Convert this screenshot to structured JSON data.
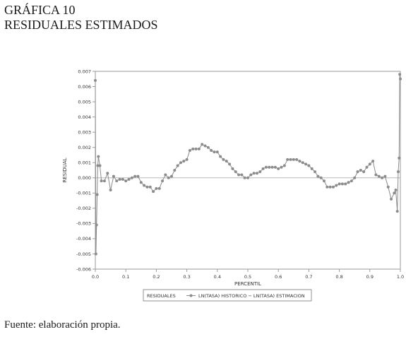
{
  "header": {
    "figure_number": "GRÁFICA 10",
    "figure_title": "RESIDUALES ESTIMADOS"
  },
  "footer": {
    "source": "Fuente: elaboración propia."
  },
  "chart_data": {
    "type": "line",
    "xlabel": "PERCENTIL",
    "ylabel": "RESIDUAL",
    "xlim": [
      0.0,
      1.0
    ],
    "ylim": [
      -0.006,
      0.007
    ],
    "xticks": [
      "0.0",
      "0.1",
      "0.2",
      "0.3",
      "0.4",
      "0.5",
      "0.6",
      "0.7",
      "0.8",
      "0.9",
      "1.0"
    ],
    "yticks": [
      "0.007",
      "0.006",
      "0.005",
      "0.004",
      "0.003",
      "0.002",
      "0.001",
      "0.000",
      "-0.001",
      "-0.002",
      "-0.003",
      "-0.004",
      "-0.005",
      "-0.006"
    ],
    "reference_line_y": 0.0,
    "grid": false,
    "legend": {
      "placement": "bottom",
      "title": "RESIDUALES",
      "entry": "LN(TASA) HISTORICO − LN(TASA) ESTIMACION"
    },
    "colors": {
      "series": "#8c8c8c",
      "reference": "#b8b8b8",
      "axis": "#9a9a9a"
    },
    "series": [
      {
        "x": [
          0.0,
          0.002,
          0.004,
          0.006,
          0.008,
          0.01,
          0.015,
          0.02,
          0.03,
          0.04,
          0.05,
          0.06,
          0.07,
          0.08,
          0.09,
          0.1,
          0.11,
          0.12,
          0.13,
          0.14,
          0.15,
          0.16,
          0.17,
          0.18,
          0.19,
          0.2,
          0.21,
          0.22,
          0.23,
          0.24,
          0.25,
          0.26,
          0.27,
          0.28,
          0.29,
          0.3,
          0.31,
          0.32,
          0.33,
          0.34,
          0.35,
          0.36,
          0.37,
          0.38,
          0.39,
          0.4,
          0.41,
          0.42,
          0.43,
          0.44,
          0.45,
          0.46,
          0.47,
          0.48,
          0.49,
          0.5,
          0.51,
          0.52,
          0.53,
          0.54,
          0.55,
          0.56,
          0.57,
          0.58,
          0.59,
          0.6,
          0.61,
          0.62,
          0.63,
          0.64,
          0.65,
          0.66,
          0.67,
          0.68,
          0.69,
          0.7,
          0.71,
          0.72,
          0.73,
          0.74,
          0.75,
          0.76,
          0.77,
          0.78,
          0.79,
          0.8,
          0.81,
          0.82,
          0.83,
          0.84,
          0.85,
          0.86,
          0.87,
          0.88,
          0.89,
          0.9,
          0.91,
          0.92,
          0.93,
          0.94,
          0.95,
          0.96,
          0.97,
          0.98,
          0.985,
          0.99,
          0.993,
          0.996,
          0.998,
          1.0
        ],
        "y": [
          0.0064,
          -0.005,
          -0.0031,
          -0.0011,
          0.0008,
          0.0014,
          0.0008,
          -0.0002,
          -0.0002,
          0.0003,
          -0.0008,
          0.0001,
          -0.0002,
          -0.0001,
          -0.0001,
          -0.0002,
          -0.0001,
          0.0,
          0.0001,
          0.0001,
          -0.0003,
          -0.0005,
          -0.0006,
          -0.0006,
          -0.0009,
          -0.0007,
          -0.0007,
          -0.0002,
          0.0002,
          0.0,
          0.0001,
          0.0005,
          0.0008,
          0.001,
          0.0011,
          0.0012,
          0.0018,
          0.0019,
          0.0019,
          0.0019,
          0.0022,
          0.0021,
          0.002,
          0.0018,
          0.0017,
          0.0017,
          0.0014,
          0.0012,
          0.0011,
          0.0009,
          0.0006,
          0.0004,
          0.0002,
          0.0002,
          0.0,
          0.0,
          0.0002,
          0.0003,
          0.0003,
          0.0004,
          0.0006,
          0.0007,
          0.0007,
          0.0007,
          0.0007,
          0.0006,
          0.0007,
          0.0008,
          0.0012,
          0.0012,
          0.0012,
          0.0012,
          0.0011,
          0.001,
          0.0009,
          0.0008,
          0.0006,
          0.0004,
          0.0001,
          0.0,
          -0.0002,
          -0.0006,
          -0.0006,
          -0.0006,
          -0.0005,
          -0.0004,
          -0.0004,
          -0.0004,
          -0.0003,
          -0.0002,
          0.0,
          0.0004,
          0.0005,
          0.0004,
          0.0007,
          0.0009,
          0.0011,
          0.0002,
          0.0001,
          0.0,
          0.0001,
          -0.0006,
          -0.0014,
          -0.001,
          -0.0008,
          -0.0022,
          0.0004,
          0.0013,
          0.0068,
          0.0065
        ]
      }
    ]
  }
}
